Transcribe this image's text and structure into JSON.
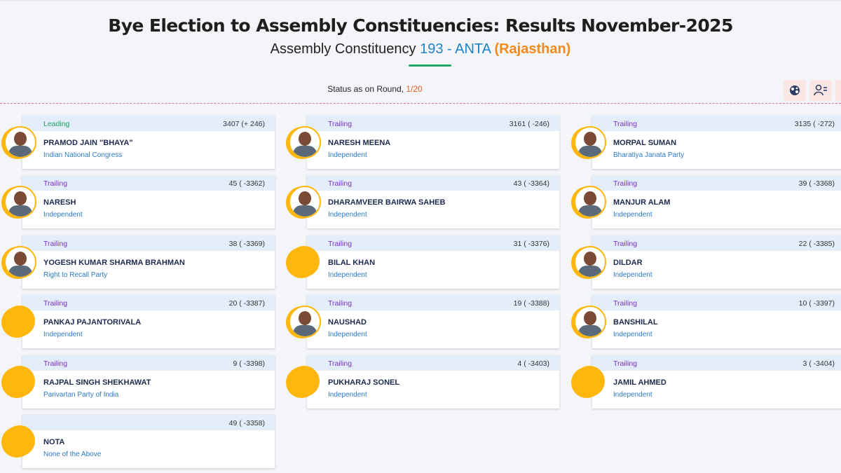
{
  "header": {
    "title": "Bye Election to Assembly Constituencies: Results November-2025",
    "subtitle_prefix": "Assembly Constituency ",
    "constituency": "193 - ANTA",
    "state": "(Rajasthan)"
  },
  "status": {
    "prefix": "Status as on Round, ",
    "round": "1/20"
  },
  "tools": [
    "party-icon",
    "candidate-icon",
    "document-icon"
  ],
  "colors": {
    "leading": "#1ba35a",
    "trailing": "#7a2ec6",
    "accent_orange": "#f08a1c",
    "accent_blue": "#1f84c6",
    "avatar_ring": "#ffb70d"
  },
  "candidates": [
    {
      "status": "Leading",
      "votes": "3407 (+ 246)",
      "name": "PRAMOD JAIN \"BHAYA\"",
      "party": "Indian National Congress",
      "photo": true
    },
    {
      "status": "Trailing",
      "votes": "3161 ( -246)",
      "name": "NARESH MEENA",
      "party": "Independent",
      "photo": true
    },
    {
      "status": "Trailing",
      "votes": "3135 ( -272)",
      "name": "MORPAL SUMAN",
      "party": "Bharatiya Janata Party",
      "photo": true
    },
    {
      "status": "Trailing",
      "votes": "45 ( -3362)",
      "name": "NARESH",
      "party": "Independent",
      "photo": true
    },
    {
      "status": "Trailing",
      "votes": "43 ( -3364)",
      "name": "DHARAMVEER BAIRWA SAHEB",
      "party": "Independent",
      "photo": true
    },
    {
      "status": "Trailing",
      "votes": "39 ( -3368)",
      "name": "MANJUR ALAM",
      "party": "Independent",
      "photo": true
    },
    {
      "status": "Trailing",
      "votes": "38 ( -3369)",
      "name": "YOGESH KUMAR SHARMA BRAHMAN",
      "party": "Right to Recall Party",
      "photo": true
    },
    {
      "status": "Trailing",
      "votes": "31 ( -3376)",
      "name": "BILAL KHAN",
      "party": "Independent",
      "photo": false
    },
    {
      "status": "Trailing",
      "votes": "22 ( -3385)",
      "name": "DILDAR",
      "party": "Independent",
      "photo": true
    },
    {
      "status": "Trailing",
      "votes": "20 ( -3387)",
      "name": "PANKAJ PAJANTORIVALA",
      "party": "Independent",
      "photo": false
    },
    {
      "status": "Trailing",
      "votes": "19 ( -3388)",
      "name": "NAUSHAD",
      "party": "Independent",
      "photo": true
    },
    {
      "status": "Trailing",
      "votes": "10 ( -3397)",
      "name": "BANSHILAL",
      "party": "Independent",
      "photo": true
    },
    {
      "status": "Trailing",
      "votes": "9 ( -3398)",
      "name": "RAJPAL SINGH SHEKHAWAT",
      "party": "Parivartan Party of India",
      "photo": false
    },
    {
      "status": "Trailing",
      "votes": "4 ( -3403)",
      "name": "PUKHARAJ SONEL",
      "party": "Independent",
      "photo": false
    },
    {
      "status": "Trailing",
      "votes": "3 ( -3404)",
      "name": "JAMIL AHMED",
      "party": "Independent",
      "photo": false
    },
    {
      "status": "",
      "votes": "49 ( -3358)",
      "name": "NOTA",
      "party": "None of the Above",
      "photo": false
    }
  ]
}
